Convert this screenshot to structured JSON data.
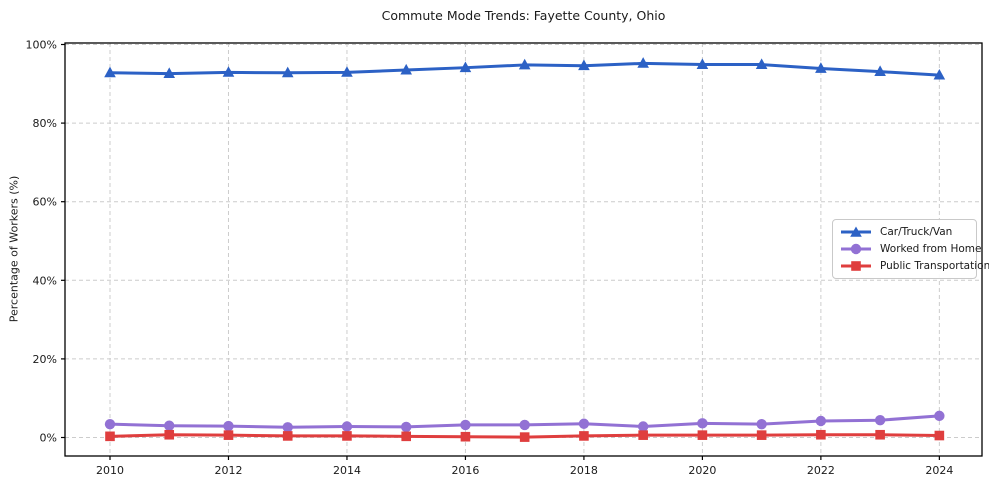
{
  "title": "Commute Mode Trends: Fayette County, Ohio",
  "chart_data": {
    "type": "line",
    "title": "Commute Mode Trends: Fayette County, Ohio",
    "xlabel": "",
    "ylabel": "Percentage of Workers (%)",
    "x": [
      2010,
      2011,
      2012,
      2013,
      2014,
      2015,
      2016,
      2017,
      2018,
      2019,
      2020,
      2021,
      2022,
      2023,
      2024
    ],
    "xtick_years": [
      2010,
      2012,
      2014,
      2016,
      2018,
      2020,
      2022,
      2024
    ],
    "xtick_labels": [
      "2010",
      "2012",
      "2014",
      "2016",
      "2018",
      "2020",
      "2022",
      "2024"
    ],
    "yticks": [
      0,
      20,
      40,
      60,
      80,
      100
    ],
    "ytick_labels": [
      "0%",
      "20%",
      "40%",
      "60%",
      "80%",
      "100%"
    ],
    "ylim": [
      0,
      100
    ],
    "grid": true,
    "legend_position": "center right",
    "series": [
      {
        "name": "Car/Truck/Van",
        "marker": "triangle",
        "color": "#2c61c5",
        "values": [
          92.8,
          92.6,
          92.9,
          92.8,
          92.9,
          93.5,
          94.1,
          94.8,
          94.6,
          95.2,
          94.9,
          94.9,
          93.9,
          93.1,
          92.2
        ]
      },
      {
        "name": "Worked from Home",
        "marker": "circle",
        "color": "#9271d4",
        "values": [
          3.4,
          3.0,
          2.9,
          2.6,
          2.8,
          2.7,
          3.2,
          3.2,
          3.5,
          2.8,
          3.6,
          3.4,
          4.2,
          4.4,
          5.5
        ]
      },
      {
        "name": "Public Transportation",
        "marker": "square",
        "color": "#df3e3e",
        "values": [
          0.3,
          0.7,
          0.6,
          0.4,
          0.4,
          0.3,
          0.2,
          0.1,
          0.4,
          0.6,
          0.6,
          0.6,
          0.7,
          0.7,
          0.5
        ]
      }
    ]
  },
  "colors": {
    "grid": "#cccccc",
    "axis": "#000000",
    "text": "#1a1a1a",
    "background": "#ffffff"
  }
}
